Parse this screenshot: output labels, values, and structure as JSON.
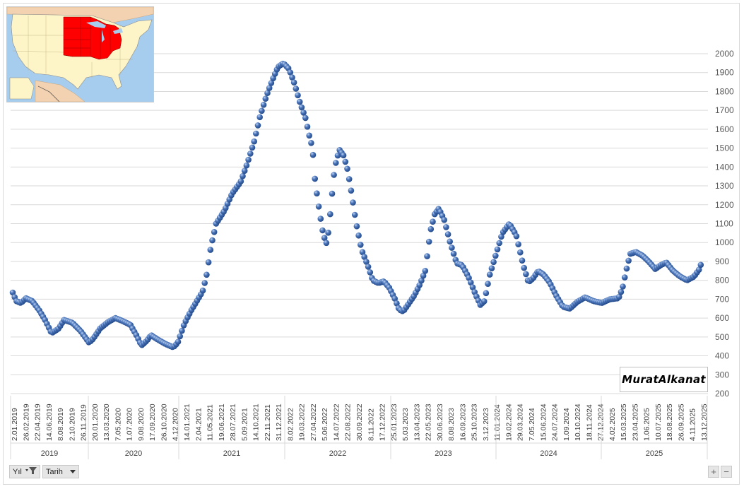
{
  "chart_data": {
    "type": "scatter",
    "ylim": [
      200,
      2000
    ],
    "y_ticks": [
      "2000",
      "1900",
      "1800",
      "1700",
      "1600",
      "1500",
      "1400",
      "1300",
      "1200",
      "1100",
      "1000",
      "900",
      "800",
      "700",
      "600",
      "500",
      "400",
      "300",
      "200"
    ],
    "x_tick_labels": [
      "2.01.2019",
      "26.02.2019",
      "22.04.2019",
      "14.06.2019",
      "8.08.2019",
      "2.10.2019",
      "26.11.2019",
      "20.01.2020",
      "13.03.2020",
      "7.05.2020",
      "1.07.2020",
      "9.08.2020",
      "17.09.2020",
      "26.10.2020",
      "4.12.2020",
      "14.01.2021",
      "2.04.2021",
      "11.05.2021",
      "19.06.2021",
      "28.07.2021",
      "5.09.2021",
      "14.10.2021",
      "22.11.2021",
      "31.12.2021",
      "8.02.2022",
      "19.03.2022",
      "27.04.2022",
      "5.06.2022",
      "14.07.2022",
      "22.08.2022",
      "30.09.2022",
      "8.11.2022",
      "17.12.2022",
      "25.01.2023",
      "5.03.2023",
      "13.04.2023",
      "22.05.2023",
      "30.06.2023",
      "8.08.2023",
      "16.09.2023",
      "25.10.2023",
      "3.12.2023",
      "11.01.2024",
      "19.02.2024",
      "29.03.2024",
      "7.05.2024",
      "15.06.2024",
      "24.07.2024",
      "1.09.2024",
      "10.10.2024",
      "18.11.2024",
      "27.12.2024",
      "4.02.2025",
      "15.03.2025",
      "23.04.2025",
      "1.06.2025",
      "10.07.2025",
      "18.08.2025",
      "26.09.2025",
      "4.11.2025",
      "13.12.2025"
    ],
    "years": [
      "2019",
      "2020",
      "2021",
      "2022",
      "2023",
      "2024",
      "2025"
    ],
    "x_dates_start": "2019-01-02",
    "x_dates_end": "2025-12-13",
    "grid": true,
    "marker_color": "#4a74b8",
    "keyframes": [
      [
        "2019-01-02",
        735
      ],
      [
        "2019-01-15",
        690
      ],
      [
        "2019-02-01",
        680
      ],
      [
        "2019-02-20",
        705
      ],
      [
        "2019-03-15",
        690
      ],
      [
        "2019-04-10",
        640
      ],
      [
        "2019-05-01",
        590
      ],
      [
        "2019-05-25",
        520
      ],
      [
        "2019-06-20",
        545
      ],
      [
        "2019-07-10",
        590
      ],
      [
        "2019-08-10",
        575
      ],
      [
        "2019-09-10",
        530
      ],
      [
        "2019-10-10",
        470
      ],
      [
        "2019-10-25",
        490
      ],
      [
        "2019-11-20",
        545
      ],
      [
        "2019-12-20",
        580
      ],
      [
        "2020-01-15",
        600
      ],
      [
        "2020-02-10",
        585
      ],
      [
        "2020-03-10",
        565
      ],
      [
        "2020-04-01",
        510
      ],
      [
        "2020-04-20",
        455
      ],
      [
        "2020-05-10",
        480
      ],
      [
        "2020-05-25",
        510
      ],
      [
        "2020-06-15",
        490
      ],
      [
        "2020-07-15",
        465
      ],
      [
        "2020-08-15",
        445
      ],
      [
        "2020-09-01",
        470
      ],
      [
        "2020-09-25",
        570
      ],
      [
        "2020-10-20",
        640
      ],
      [
        "2020-11-10",
        690
      ],
      [
        "2020-12-01",
        740
      ],
      [
        "2020-12-15",
        820
      ],
      [
        "2021-01-01",
        980
      ],
      [
        "2021-01-20",
        1100
      ],
      [
        "2021-02-20",
        1170
      ],
      [
        "2021-03-20",
        1260
      ],
      [
        "2021-04-20",
        1320
      ],
      [
        "2021-05-15",
        1420
      ],
      [
        "2021-06-10",
        1540
      ],
      [
        "2021-07-01",
        1670
      ],
      [
        "2021-07-25",
        1780
      ],
      [
        "2021-08-15",
        1860
      ],
      [
        "2021-09-05",
        1930
      ],
      [
        "2021-09-25",
        1950
      ],
      [
        "2021-10-15",
        1920
      ],
      [
        "2021-11-05",
        1840
      ],
      [
        "2021-11-25",
        1740
      ],
      [
        "2021-12-15",
        1660
      ],
      [
        "2021-12-30",
        1560
      ],
      [
        "2022-01-10",
        1500
      ],
      [
        "2022-01-20",
        1320
      ],
      [
        "2022-02-01",
        1200
      ],
      [
        "2022-02-15",
        1070
      ],
      [
        "2022-03-01",
        990
      ],
      [
        "2022-03-10",
        1060
      ],
      [
        "2022-03-20",
        1210
      ],
      [
        "2022-03-28",
        1340
      ],
      [
        "2022-04-08",
        1440
      ],
      [
        "2022-04-20",
        1490
      ],
      [
        "2022-05-05",
        1460
      ],
      [
        "2022-05-20",
        1380
      ],
      [
        "2022-06-05",
        1240
      ],
      [
        "2022-06-20",
        1100
      ],
      [
        "2022-07-10",
        960
      ],
      [
        "2022-08-01",
        880
      ],
      [
        "2022-08-20",
        800
      ],
      [
        "2022-09-10",
        785
      ],
      [
        "2022-09-30",
        795
      ],
      [
        "2022-10-20",
        760
      ],
      [
        "2022-11-10",
        700
      ],
      [
        "2022-11-25",
        645
      ],
      [
        "2022-12-10",
        635
      ],
      [
        "2023-01-01",
        680
      ],
      [
        "2023-01-20",
        720
      ],
      [
        "2023-02-10",
        780
      ],
      [
        "2023-03-01",
        850
      ],
      [
        "2023-03-20",
        1060
      ],
      [
        "2023-04-05",
        1150
      ],
      [
        "2023-04-20",
        1180
      ],
      [
        "2023-05-10",
        1120
      ],
      [
        "2023-06-01",
        1000
      ],
      [
        "2023-06-25",
        890
      ],
      [
        "2023-07-15",
        880
      ],
      [
        "2023-08-10",
        810
      ],
      [
        "2023-09-01",
        730
      ],
      [
        "2023-09-20",
        670
      ],
      [
        "2023-10-05",
        690
      ],
      [
        "2023-10-25",
        830
      ],
      [
        "2023-11-15",
        930
      ],
      [
        "2023-12-10",
        1050
      ],
      [
        "2024-01-05",
        1100
      ],
      [
        "2024-01-30",
        1040
      ],
      [
        "2024-02-25",
        880
      ],
      [
        "2024-03-15",
        790
      ],
      [
        "2024-04-01",
        810
      ],
      [
        "2024-04-20",
        850
      ],
      [
        "2024-05-10",
        830
      ],
      [
        "2024-06-01",
        790
      ],
      [
        "2024-06-25",
        720
      ],
      [
        "2024-07-20",
        660
      ],
      [
        "2024-08-15",
        650
      ],
      [
        "2024-09-10",
        685
      ],
      [
        "2024-10-10",
        710
      ],
      [
        "2024-11-10",
        690
      ],
      [
        "2024-12-10",
        680
      ],
      [
        "2025-01-10",
        700
      ],
      [
        "2025-02-10",
        705
      ],
      [
        "2025-02-25",
        760
      ],
      [
        "2025-03-10",
        850
      ],
      [
        "2025-03-25",
        940
      ],
      [
        "2025-04-15",
        950
      ],
      [
        "2025-05-10",
        930
      ],
      [
        "2025-06-01",
        900
      ],
      [
        "2025-06-25",
        860
      ],
      [
        "2025-07-15",
        880
      ],
      [
        "2025-08-05",
        895
      ],
      [
        "2025-08-30",
        850
      ],
      [
        "2025-09-25",
        820
      ],
      [
        "2025-10-20",
        800
      ],
      [
        "2025-11-15",
        820
      ],
      [
        "2025-12-05",
        860
      ],
      [
        "2025-12-13",
        895
      ]
    ]
  },
  "filter_buttons": [
    {
      "label": "Yıl"
    },
    {
      "label": "Tarih"
    }
  ],
  "zoom": {
    "plus": "+",
    "minus": "−"
  },
  "watermark": {
    "text": "MuratAlkanat"
  },
  "map": {
    "highlight_color": "#ff0000",
    "land_color": "#fdf5c8",
    "water_color": "#a7cdee",
    "neighbor_color": "#f2d2b0"
  }
}
